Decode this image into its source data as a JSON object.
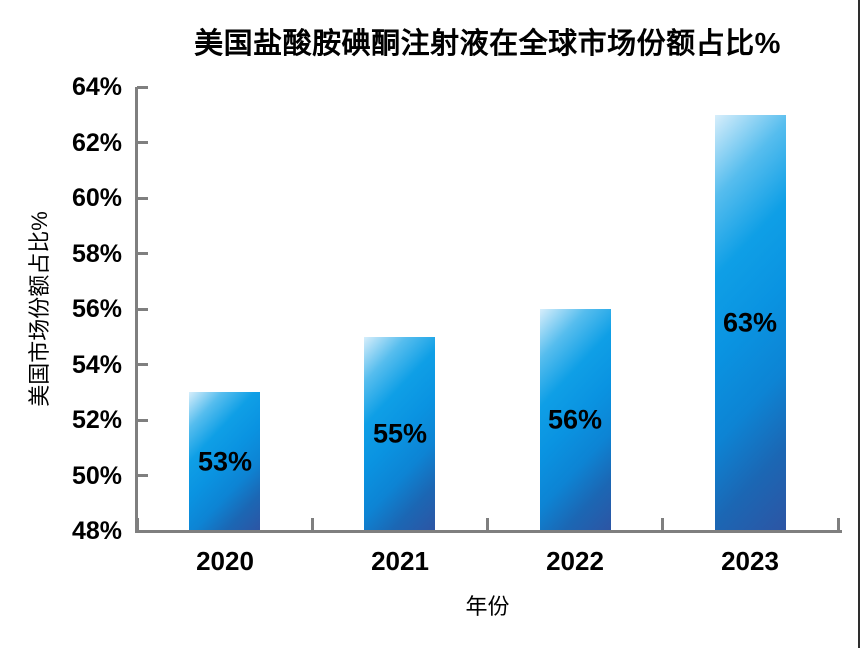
{
  "page": {
    "background_color": "#ffffff",
    "right_edge_line_color": "#2e2e2e"
  },
  "chart_data": {
    "type": "bar",
    "title": "美国盐酸胺碘酮注射液在全球市场份额占比%",
    "categories": [
      "2020",
      "2021",
      "2022",
      "2023"
    ],
    "values": [
      53,
      55,
      56,
      63
    ],
    "data_labels": [
      "53%",
      "55%",
      "56%",
      "63%"
    ],
    "xlabel": "年份",
    "ylabel": "美国市场份额占比%",
    "ylim": [
      48,
      64
    ],
    "ytick_step": 2,
    "ytick_labels": [
      "64%",
      "62%",
      "60%",
      "58%",
      "56%",
      "54%",
      "52%",
      "50%",
      "48%"
    ],
    "grid": false,
    "legend": false,
    "axis_color": "#7f7f7f",
    "text_color": "#000000",
    "bar_gradient": [
      "#d7eefb",
      "#56bdee",
      "#0f9fe6",
      "#0a93e1",
      "#0d84d4",
      "#1b67b4",
      "#2d55a4"
    ]
  }
}
